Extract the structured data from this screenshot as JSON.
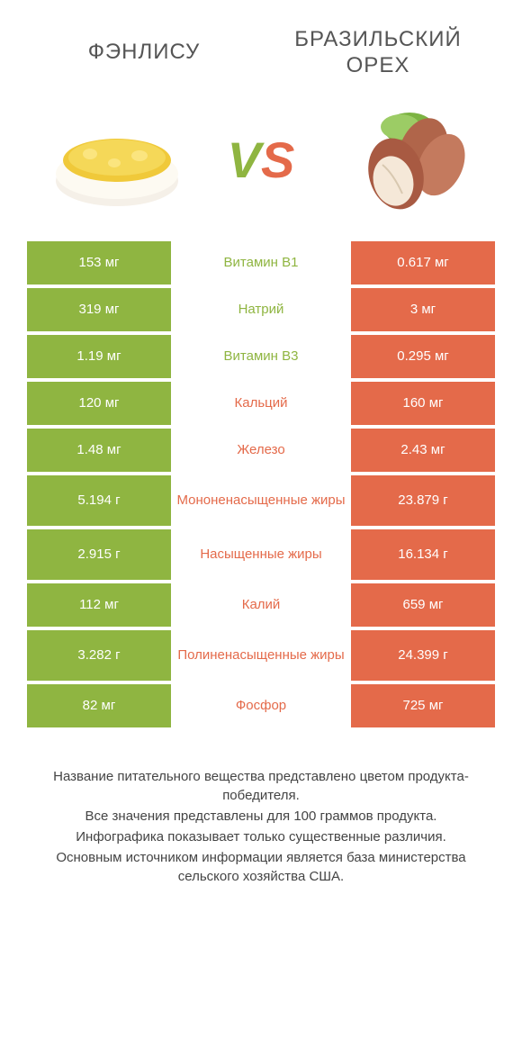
{
  "header": {
    "left": "ФЭНЛИСУ",
    "right": "БРАЗИЛЬСКИЙ ОРЕХ",
    "vs_v": "V",
    "vs_s": "S"
  },
  "colors": {
    "green": "#8fb541",
    "orange": "#e46a4a",
    "text": "#555555",
    "footer": "#444444",
    "bg": "#ffffff"
  },
  "table": {
    "rows": [
      {
        "left": "153 мг",
        "mid": "Витамин B1",
        "right": "0.617 мг",
        "winner": "left",
        "tall": false
      },
      {
        "left": "319 мг",
        "mid": "Натрий",
        "right": "3 мг",
        "winner": "left",
        "tall": false
      },
      {
        "left": "1.19 мг",
        "mid": "Витамин B3",
        "right": "0.295 мг",
        "winner": "left",
        "tall": false
      },
      {
        "left": "120 мг",
        "mid": "Кальций",
        "right": "160 мг",
        "winner": "right",
        "tall": false
      },
      {
        "left": "1.48 мг",
        "mid": "Железо",
        "right": "2.43 мг",
        "winner": "right",
        "tall": false
      },
      {
        "left": "5.194 г",
        "mid": "Мононенасыщенные жиры",
        "right": "23.879 г",
        "winner": "right",
        "tall": true
      },
      {
        "left": "2.915 г",
        "mid": "Насыщенные жиры",
        "right": "16.134 г",
        "winner": "right",
        "tall": true
      },
      {
        "left": "112 мг",
        "mid": "Калий",
        "right": "659 мг",
        "winner": "right",
        "tall": false
      },
      {
        "left": "3.282 г",
        "mid": "Полиненасыщенные жиры",
        "right": "24.399 г",
        "winner": "right",
        "tall": true
      },
      {
        "left": "82 мг",
        "mid": "Фосфор",
        "right": "725 мг",
        "winner": "right",
        "tall": false
      }
    ]
  },
  "footer": {
    "line1": "Название питательного вещества представлено цветом продукта-победителя.",
    "line2": "Все значения представлены для 100 граммов продукта.",
    "line3": "Инфографика показывает только существенные различия.",
    "line4": "Основным источником информации является база министерства сельского хозяйства США."
  },
  "fonts": {
    "title_size": 24,
    "vs_size": 56,
    "cell_size": 15,
    "footer_size": 15
  }
}
